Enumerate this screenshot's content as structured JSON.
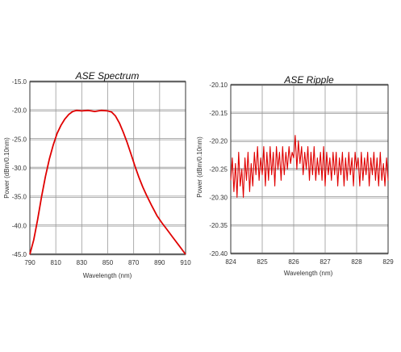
{
  "chart_data": [
    {
      "type": "line",
      "title": "ASE Spectrum",
      "xlabel": "Wavelength (nm)",
      "ylabel": "Power (dBm/0.10nm)",
      "xlim": [
        790,
        910
      ],
      "ylim": [
        -45,
        -15
      ],
      "x_ticks": [
        790,
        810,
        830,
        850,
        870,
        890,
        910
      ],
      "y_ticks": [
        -15,
        -20,
        -25,
        -30,
        -35,
        -40,
        -45
      ],
      "x_tick_labels": [
        "790",
        "810",
        "830",
        "850",
        "870",
        "890",
        "910"
      ],
      "y_tick_labels": [
        "-15.0",
        "-20.0",
        "-25.0",
        "-30.0",
        "-35.0",
        "-40.0",
        "-45.0"
      ],
      "grid": true,
      "line_color": "#e00000",
      "series": [
        {
          "x": [
            790,
            793,
            796,
            799,
            802,
            805,
            808,
            811,
            814,
            817,
            820,
            823,
            826,
            830,
            835,
            840,
            845,
            850,
            853,
            856,
            859,
            862,
            865,
            868,
            871,
            874,
            877,
            880,
            884,
            888,
            892,
            896,
            900,
            905,
            910
          ],
          "y": [
            -45.0,
            -42.5,
            -39.0,
            -35.0,
            -31.5,
            -28.5,
            -26.0,
            -24.0,
            -22.6,
            -21.5,
            -20.7,
            -20.2,
            -20.0,
            -20.1,
            -20.0,
            -20.2,
            -20.0,
            -20.1,
            -20.3,
            -21.0,
            -22.2,
            -23.8,
            -25.6,
            -27.6,
            -29.7,
            -31.6,
            -33.3,
            -34.8,
            -36.6,
            -38.3,
            -39.6,
            -40.8,
            -42.0,
            -43.5,
            -45.0
          ]
        }
      ]
    },
    {
      "type": "line",
      "title": "ASE Ripple",
      "xlabel": "Wavelength (nm)",
      "ylabel": "Power (dBm/0.10nm)",
      "xlim": [
        824,
        829
      ],
      "ylim": [
        -20.4,
        -20.1
      ],
      "x_ticks": [
        824,
        825,
        826,
        827,
        828,
        829
      ],
      "y_ticks": [
        -20.1,
        -20.15,
        -20.2,
        -20.25,
        -20.3,
        -20.35,
        -20.4
      ],
      "x_tick_labels": [
        "824",
        "825",
        "826",
        "827",
        "828",
        "829"
      ],
      "y_tick_labels": [
        "-20.10",
        "-20.15",
        "-20.20",
        "-20.25",
        "-20.30",
        "-20.35",
        "-20.40"
      ],
      "grid": true,
      "line_color": "#e00000",
      "series": [
        {
          "x": [
            824.0,
            824.05,
            824.1,
            824.15,
            824.2,
            824.25,
            824.3,
            824.35,
            824.4,
            824.45,
            824.5,
            824.55,
            824.6,
            824.65,
            824.7,
            824.75,
            824.8,
            824.85,
            824.9,
            824.95,
            825.0,
            825.05,
            825.1,
            825.15,
            825.2,
            825.25,
            825.3,
            825.35,
            825.4,
            825.45,
            825.5,
            825.55,
            825.6,
            825.65,
            825.7,
            825.75,
            825.8,
            825.85,
            825.9,
            825.95,
            826.0,
            826.05,
            826.1,
            826.15,
            826.2,
            826.25,
            826.3,
            826.35,
            826.4,
            826.45,
            826.5,
            826.55,
            826.6,
            826.65,
            826.7,
            826.75,
            826.8,
            826.85,
            826.9,
            826.95,
            827.0,
            827.05,
            827.1,
            827.15,
            827.2,
            827.25,
            827.3,
            827.35,
            827.4,
            827.45,
            827.5,
            827.55,
            827.6,
            827.65,
            827.7,
            827.75,
            827.8,
            827.85,
            827.9,
            827.95,
            828.0,
            828.05,
            828.1,
            828.15,
            828.2,
            828.25,
            828.3,
            828.35,
            828.4,
            828.45,
            828.5,
            828.55,
            828.6,
            828.65,
            828.7,
            828.75,
            828.8,
            828.85,
            828.9,
            828.95,
            829.0
          ],
          "y": [
            -20.27,
            -20.23,
            -20.29,
            -20.24,
            -20.3,
            -20.22,
            -20.28,
            -20.25,
            -20.3,
            -20.23,
            -20.27,
            -20.22,
            -20.29,
            -20.24,
            -20.28,
            -20.22,
            -20.26,
            -20.21,
            -20.27,
            -20.23,
            -20.26,
            -20.21,
            -20.28,
            -20.22,
            -20.27,
            -20.21,
            -20.26,
            -20.22,
            -20.28,
            -20.21,
            -20.25,
            -20.22,
            -20.27,
            -20.21,
            -20.26,
            -20.22,
            -20.25,
            -20.21,
            -20.24,
            -20.22,
            -20.23,
            -20.19,
            -20.25,
            -20.2,
            -20.24,
            -20.21,
            -20.26,
            -20.22,
            -20.25,
            -20.21,
            -20.27,
            -20.22,
            -20.26,
            -20.21,
            -20.27,
            -20.23,
            -20.26,
            -20.22,
            -20.27,
            -20.21,
            -20.28,
            -20.22,
            -20.26,
            -20.23,
            -20.27,
            -20.22,
            -20.26,
            -20.22,
            -20.28,
            -20.23,
            -20.26,
            -20.22,
            -20.28,
            -20.23,
            -20.27,
            -20.22,
            -20.26,
            -20.23,
            -20.28,
            -20.22,
            -20.25,
            -20.23,
            -20.28,
            -20.22,
            -20.27,
            -20.23,
            -20.26,
            -20.22,
            -20.28,
            -20.23,
            -20.26,
            -20.22,
            -20.27,
            -20.23,
            -20.28,
            -20.22,
            -20.27,
            -20.24,
            -20.28,
            -20.23,
            -20.27
          ]
        }
      ]
    }
  ]
}
